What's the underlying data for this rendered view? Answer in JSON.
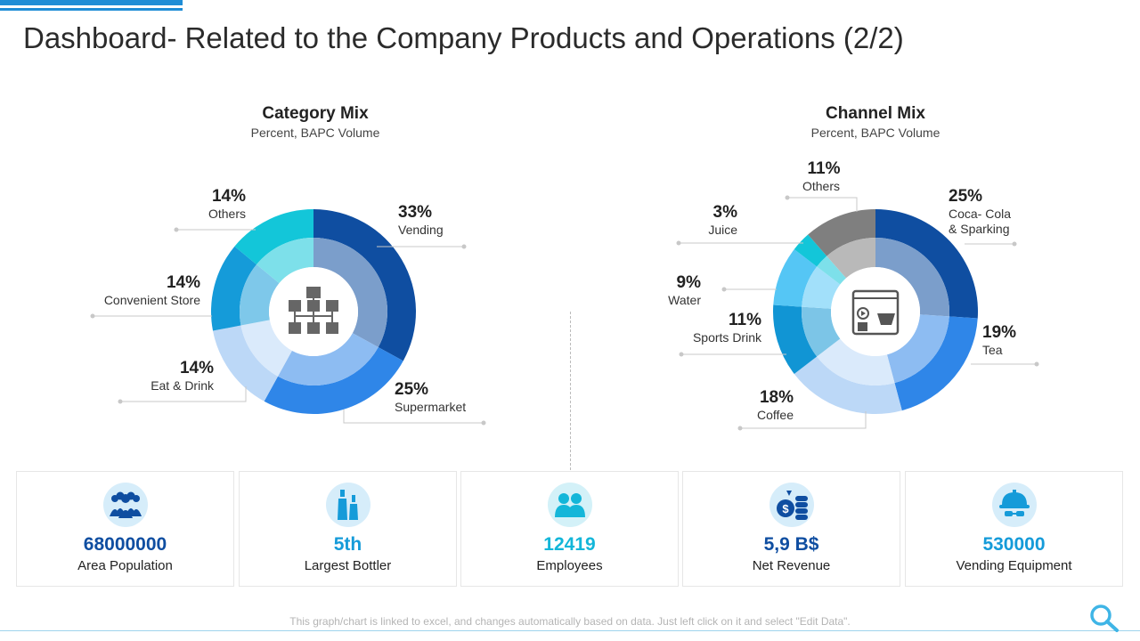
{
  "page": {
    "title": "Dashboard- Related to the Company Products and Operations (2/2)",
    "footnote": "This graph/chart is linked to excel, and changes automatically based on data. Just left click on it and select \"Edit Data\"."
  },
  "chart_data": [
    {
      "type": "pie",
      "title": "Category Mix",
      "subtitle": "Percent, BAPC Volume",
      "categories": [
        "Vending",
        "Supermarket",
        "Eat & Drink",
        "Convenient Store",
        "Others"
      ],
      "values": [
        33,
        25,
        14,
        14,
        14
      ],
      "labels": [
        "33%",
        "25%",
        "14%",
        "14%",
        "14%"
      ],
      "colors": [
        "#0f4ea1",
        "#2f86e8",
        "#bcd8f7",
        "#159bd9",
        "#13c6d9"
      ],
      "center_icon": "hierarchy-icon"
    },
    {
      "type": "pie",
      "title": "Channel Mix",
      "subtitle": "Percent, BAPC Volume",
      "categories": [
        "Coca- Cola & Sparking",
        "Tea",
        "Coffee",
        "Sports Drink",
        "Water",
        "Juice",
        "Others"
      ],
      "values": [
        25,
        19,
        18,
        11,
        9,
        3,
        11
      ],
      "labels": [
        "25%",
        "19%",
        "18%",
        "11%",
        "9%",
        "3%",
        "11%"
      ],
      "colors": [
        "#0f4ea1",
        "#2f86e8",
        "#bcd8f7",
        "#1195d4",
        "#55c6f5",
        "#13c6d9",
        "#7f7f7f"
      ],
      "center_icon": "media-shop-icon"
    }
  ],
  "kpis": [
    {
      "value": "68000000",
      "label": "Area Population",
      "icon": "people-group-icon",
      "color": "#0f4ea1"
    },
    {
      "value": "5th",
      "label": "Largest Bottler",
      "icon": "bottles-icon",
      "color": "#159bd9"
    },
    {
      "value": "12419",
      "label": "Employees",
      "icon": "employees-icon",
      "color": "#13b6d9"
    },
    {
      "value": "5,9 B$",
      "label": "Net Revenue",
      "icon": "coins-icon",
      "color": "#0f4ea1"
    },
    {
      "value": "530000",
      "label": "Vending Equipment",
      "icon": "worker-helmet-icon",
      "color": "#159bd9"
    }
  ]
}
